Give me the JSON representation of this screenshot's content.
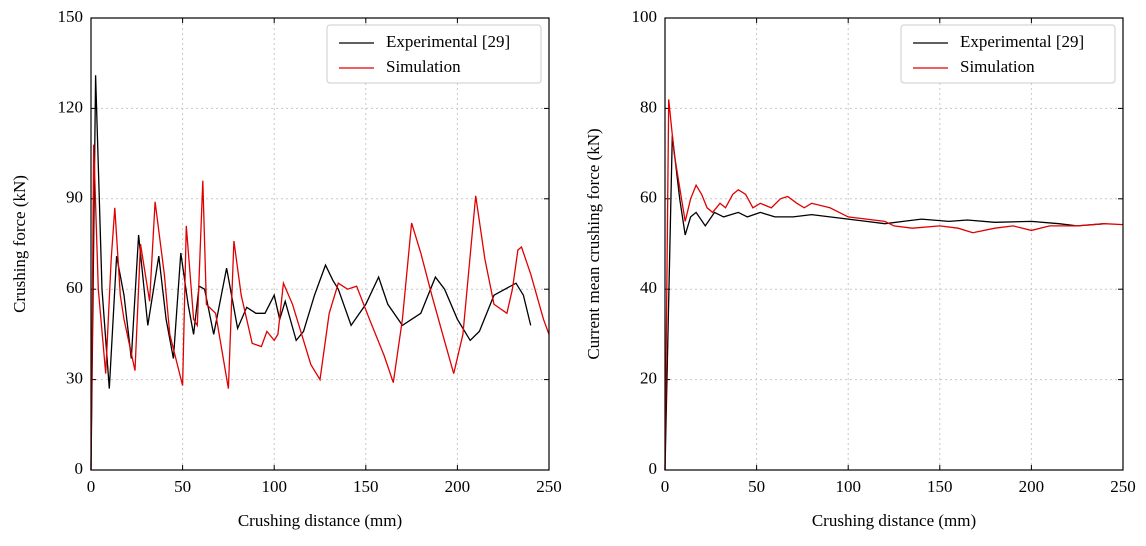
{
  "chart_data": [
    {
      "type": "line",
      "xlabel": "Crushing distance (mm)",
      "ylabel": "Crushing force (kN)",
      "xlim": [
        0,
        250
      ],
      "ylim": [
        0,
        150
      ],
      "xticks": [
        0,
        50,
        100,
        150,
        200,
        250
      ],
      "yticks": [
        0,
        30,
        60,
        90,
        120,
        150
      ],
      "grid": true,
      "legend": "upper right",
      "series": [
        {
          "name": "Experimental [29]",
          "color": "#000000",
          "x": [
            0,
            2.5,
            6,
            10,
            14,
            18,
            22,
            26,
            31,
            37,
            41,
            45,
            49,
            53,
            56,
            59,
            62,
            67,
            74,
            80,
            85,
            90,
            95,
            100,
            103,
            106,
            112,
            116,
            122,
            128,
            132,
            135,
            142,
            150,
            157,
            162,
            170,
            175,
            180,
            188,
            193,
            200,
            207,
            212,
            220,
            232,
            236,
            240
          ],
          "values": [
            0,
            131,
            60,
            27,
            71,
            58,
            37,
            78,
            48,
            71,
            50,
            37,
            72,
            55,
            45,
            61,
            60,
            45,
            67,
            47,
            54,
            52,
            52,
            58,
            50,
            56,
            43,
            46,
            58,
            68,
            63,
            60,
            48,
            55,
            64,
            55,
            48,
            50,
            52,
            64,
            60,
            50,
            43,
            46,
            58,
            62,
            58,
            48
          ]
        },
        {
          "name": "Simulation",
          "color": "#e00000",
          "x": [
            0,
            1.5,
            4,
            8,
            11,
            13,
            16,
            18,
            24,
            27,
            32,
            35,
            40,
            43,
            50,
            52,
            56,
            58,
            61,
            63,
            68,
            75,
            78,
            82,
            88,
            93,
            96,
            100,
            102,
            105,
            110,
            115,
            120,
            125,
            130,
            135,
            140,
            145,
            152,
            160,
            165,
            170,
            175,
            180,
            186,
            192,
            198,
            203,
            210,
            215,
            220,
            227,
            230,
            233,
            235,
            240,
            247,
            250
          ],
          "values": [
            0,
            108,
            60,
            32,
            70,
            87,
            58,
            50,
            33,
            75,
            56,
            89,
            65,
            45,
            28,
            81,
            50,
            48,
            96,
            55,
            52,
            27,
            76,
            58,
            42,
            41,
            46,
            43,
            45,
            62,
            55,
            45,
            35,
            30,
            52,
            62,
            60,
            61,
            50,
            38,
            29,
            50,
            82,
            72,
            58,
            45,
            32,
            45,
            91,
            70,
            55,
            52,
            60,
            73,
            74,
            65,
            50,
            45
          ]
        }
      ]
    },
    {
      "type": "line",
      "xlabel": "Crushing distance (mm)",
      "ylabel": "Current mean crushing force (kN)",
      "xlim": [
        0,
        250
      ],
      "ylim": [
        0,
        100
      ],
      "xticks": [
        0,
        50,
        100,
        150,
        200,
        250
      ],
      "yticks": [
        0,
        20,
        40,
        60,
        80,
        100
      ],
      "grid": true,
      "legend": "upper right",
      "series": [
        {
          "name": "Experimental [29]",
          "color": "#000000",
          "x": [
            0,
            4,
            8,
            11,
            14,
            17,
            22,
            27,
            32,
            40,
            45,
            52,
            60,
            70,
            80,
            90,
            100,
            110,
            120,
            130,
            140,
            155,
            165,
            180,
            200,
            215,
            225,
            240
          ],
          "values": [
            0,
            74,
            60,
            52,
            56,
            57,
            54,
            57,
            56,
            57,
            56,
            57,
            56,
            56,
            56.5,
            56,
            55.5,
            55,
            54.5,
            55,
            55.5,
            55,
            55.3,
            54.8,
            55,
            54.5,
            54,
            54.5
          ]
        },
        {
          "name": "Simulation",
          "color": "#e00000",
          "x": [
            0,
            2,
            5,
            9,
            11,
            14,
            17,
            20,
            23,
            26,
            30,
            33,
            37,
            40,
            44,
            48,
            52,
            58,
            63,
            67,
            72,
            76,
            80,
            90,
            100,
            110,
            120,
            125,
            135,
            150,
            160,
            168,
            180,
            190,
            200,
            210,
            225,
            240,
            250
          ],
          "values": [
            0,
            82,
            70,
            60,
            55,
            60,
            63,
            61,
            58,
            57,
            59,
            58,
            61,
            62,
            61,
            58,
            59,
            58,
            60,
            60.5,
            59,
            58,
            59,
            58,
            56,
            55.5,
            55,
            54,
            53.5,
            54,
            53.5,
            52.5,
            53.5,
            54,
            53,
            54,
            54,
            54.5,
            54.3
          ]
        }
      ]
    }
  ]
}
